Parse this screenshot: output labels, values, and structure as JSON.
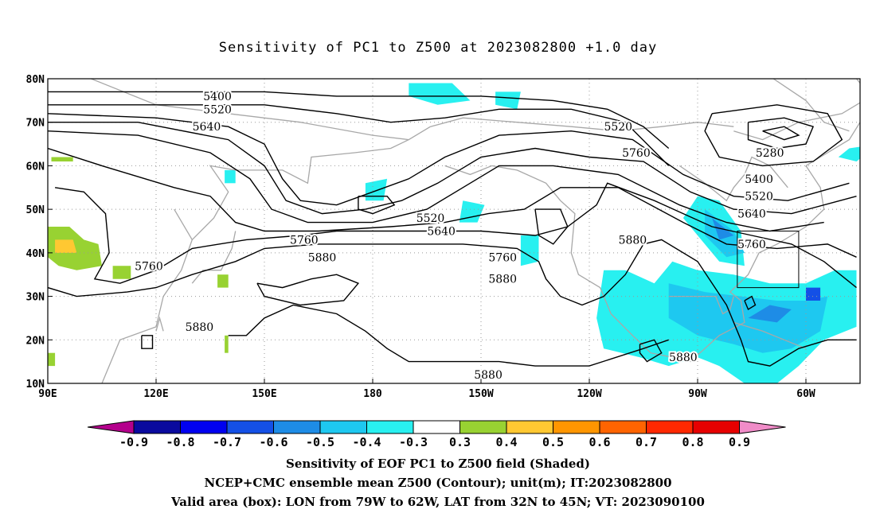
{
  "title": "Sensitivity of PC1 to Z500 at 2023082800 +1.0 day",
  "captions": [
    "Sensitivity of EOF PC1 to Z500 field (Shaded)",
    "NCEP+CMC ensemble mean Z500 (Contour); unit(m); IT:2023082800",
    "Valid area (box): LON from 79W to 62W, LAT from 32N to 45N; VT: 2023090100"
  ],
  "map": {
    "lat_labels": [
      "80N",
      "70N",
      "60N",
      "50N",
      "40N",
      "30N",
      "20N",
      "10N"
    ],
    "lat_values": [
      80,
      70,
      60,
      50,
      40,
      30,
      20,
      10
    ],
    "lon_labels": [
      "90E",
      "120E",
      "150E",
      "180",
      "150W",
      "120W",
      "90W",
      "60W"
    ],
    "lon_values": [
      90,
      120,
      150,
      180,
      210,
      240,
      270,
      300
    ],
    "lon_range": [
      90,
      315
    ],
    "lat_range": [
      10,
      80
    ],
    "valid_box": {
      "lon": [
        281,
        298
      ],
      "lat": [
        32,
        45
      ]
    },
    "contour_labels": [
      {
        "text": "5400",
        "lon": 137,
        "lat": 76
      },
      {
        "text": "5520",
        "lon": 137,
        "lat": 73
      },
      {
        "text": "5640",
        "lon": 134,
        "lat": 69
      },
      {
        "text": "5520",
        "lon": 248,
        "lat": 69
      },
      {
        "text": "5760",
        "lon": 253,
        "lat": 63
      },
      {
        "text": "5280",
        "lon": 290,
        "lat": 63
      },
      {
        "text": "5400",
        "lon": 287,
        "lat": 57
      },
      {
        "text": "5520",
        "lon": 287,
        "lat": 53
      },
      {
        "text": "5640",
        "lon": 285,
        "lat": 49
      },
      {
        "text": "5760",
        "lon": 285,
        "lat": 42
      },
      {
        "text": "5520",
        "lon": 196,
        "lat": 48
      },
      {
        "text": "5640",
        "lon": 199,
        "lat": 45
      },
      {
        "text": "5760",
        "lon": 161,
        "lat": 43
      },
      {
        "text": "5880",
        "lon": 166,
        "lat": 39
      },
      {
        "text": "5760",
        "lon": 216,
        "lat": 39
      },
      {
        "text": "5880",
        "lon": 216,
        "lat": 34
      },
      {
        "text": "5880",
        "lon": 252,
        "lat": 43
      },
      {
        "text": "5760",
        "lon": 118,
        "lat": 37
      },
      {
        "text": "5880",
        "lon": 132,
        "lat": 23
      },
      {
        "text": "5880",
        "lon": 266,
        "lat": 16
      },
      {
        "text": "5880",
        "lon": 212,
        "lat": 12
      }
    ]
  },
  "colorbar": {
    "labels": [
      "-0.9",
      "-0.8",
      "-0.7",
      "-0.6",
      "-0.5",
      "-0.4",
      "-0.3",
      "0.3",
      "0.4",
      "0.5",
      "0.6",
      "0.7",
      "0.8",
      "0.9"
    ],
    "colors": [
      "#b4008c",
      "#0a0a9e",
      "#0000f0",
      "#1450e6",
      "#1e8ce6",
      "#1ec8f0",
      "#28f0f0",
      "#ffffff",
      "#98d232",
      "#ffc832",
      "#ff9600",
      "#ff6400",
      "#ff2800",
      "#e60000",
      "#f08cc8"
    ]
  }
}
